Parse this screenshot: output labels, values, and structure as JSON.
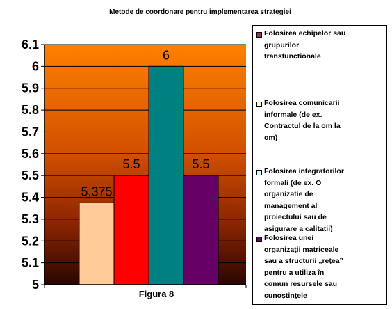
{
  "chart_data": {
    "type": "bar",
    "title": "Metode de coordonare pentru implementarea strategiei",
    "xlabel": "",
    "ylabel": "",
    "categories": [
      "Figura 8"
    ],
    "ylim": [
      5,
      6.1
    ],
    "yticks": [
      "5",
      "5.1",
      "5.2",
      "5.3",
      "5.4",
      "5.5",
      "5.6",
      "5.7",
      "5.8",
      "5.9",
      "6",
      "6.1"
    ],
    "ytick_values": [
      5,
      5.1,
      5.2,
      5.3,
      5.4,
      5.5,
      5.6,
      5.7,
      5.8,
      5.9,
      6,
      6.1
    ],
    "grid": true,
    "legend_position": "right",
    "background": "orange-to-dark-red gradient",
    "series": [
      {
        "name": "Folosirea comunicarii informale (de ex. Contractul de la om la om)",
        "values": [
          5.375
        ],
        "label": "5.375",
        "color": "#FFCC99"
      },
      {
        "name": "Folosirea echipelor sau grupurilor transfunctionale",
        "values": [
          5.5
        ],
        "label": "5.5",
        "color": "#FF0000"
      },
      {
        "name": "Folosirea integratorilor formali (de ex. O organizatie de management al proiectului sau de asigurare a calitatii)",
        "values": [
          6
        ],
        "label": "6",
        "color": "#008080"
      },
      {
        "name": "Folosirea unei organizaţii matriceale sau a structurii „reţea” pentru a utiliza în comun resursele sau cunoştinţele",
        "values": [
          5.5
        ],
        "label": "5.5",
        "color": "#660066"
      }
    ],
    "legend": [
      {
        "lines": [
          "Folosirea echipelor sau",
          "grupurilor",
          "transfunctionale"
        ],
        "color": "#993366"
      },
      {
        "lines": [
          "Folosirea comunicarii",
          "informale (de ex.",
          "Contractul de la om la",
          "om)"
        ],
        "color": "#FFFFCC"
      },
      {
        "lines": [
          "Folosirea  integratorilor",
          "formali (de ex. O",
          "organizatie de",
          "management al",
          "proiectului sau de",
          "asigurare a calitatii)"
        ],
        "color": "#CCFFFF"
      },
      {
        "lines": [
          "Folosirea unei",
          "organizaţii matriceale",
          "sau a structurii „reţea”",
          "pentru a utiliza în",
          "comun resursele sau",
          "cunoştinţele"
        ],
        "color": "#660066"
      }
    ]
  }
}
